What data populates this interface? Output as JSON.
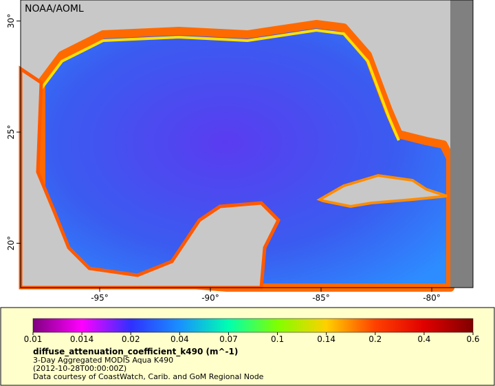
{
  "map": {
    "credit": "NOAA/AOML",
    "lon_ticks": [
      {
        "value": -95,
        "label": "-95°"
      },
      {
        "value": -90,
        "label": "-90°"
      },
      {
        "value": -85,
        "label": "-85°"
      },
      {
        "value": -80,
        "label": "-80°"
      }
    ],
    "lat_ticks": [
      {
        "value": 30,
        "label": "30°"
      },
      {
        "value": 25,
        "label": "25°"
      },
      {
        "value": 20,
        "label": "20°"
      }
    ]
  },
  "colorbar": {
    "ticks": [
      0.01,
      0.014,
      0.02,
      0.04,
      0.07,
      0.1,
      0.14,
      0.2,
      0.4,
      0.6
    ],
    "colors": [
      "#800080",
      "#ff00ff",
      "#3030ff",
      "#1890ff",
      "#00ffb0",
      "#80ff00",
      "#ffd000",
      "#ff4000",
      "#e00000",
      "#800000"
    ],
    "title": "diffuse_attenuation_coefficient_k490 (m^-1)",
    "lines": [
      "3-Day Aggregated MODIS Aqua K490",
      "(2012-10-28T00:00:00Z)",
      "Data courtesy of CoastWatch, Carib. and GoM Regional Node"
    ]
  }
}
